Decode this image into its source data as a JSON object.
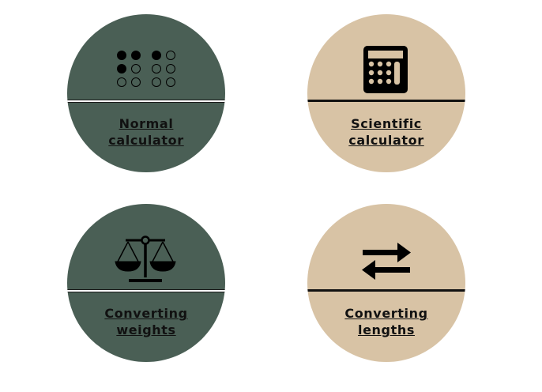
{
  "tiles": [
    {
      "id": "normal",
      "line1": "Normal",
      "line2": "calculator",
      "icon": "dots-grid-icon",
      "color": "#4a5f55"
    },
    {
      "id": "scientific",
      "line1": "Scientific",
      "line2": "calculator",
      "icon": "calculator-icon",
      "color": "#d8c3a5"
    },
    {
      "id": "weights",
      "line1": "Converting",
      "line2": "weights",
      "icon": "balance-scale-icon",
      "color": "#4a5f55"
    },
    {
      "id": "lengths",
      "line1": "Converting",
      "line2": "lengths",
      "icon": "swap-arrows-icon",
      "color": "#d8c3a5"
    }
  ]
}
